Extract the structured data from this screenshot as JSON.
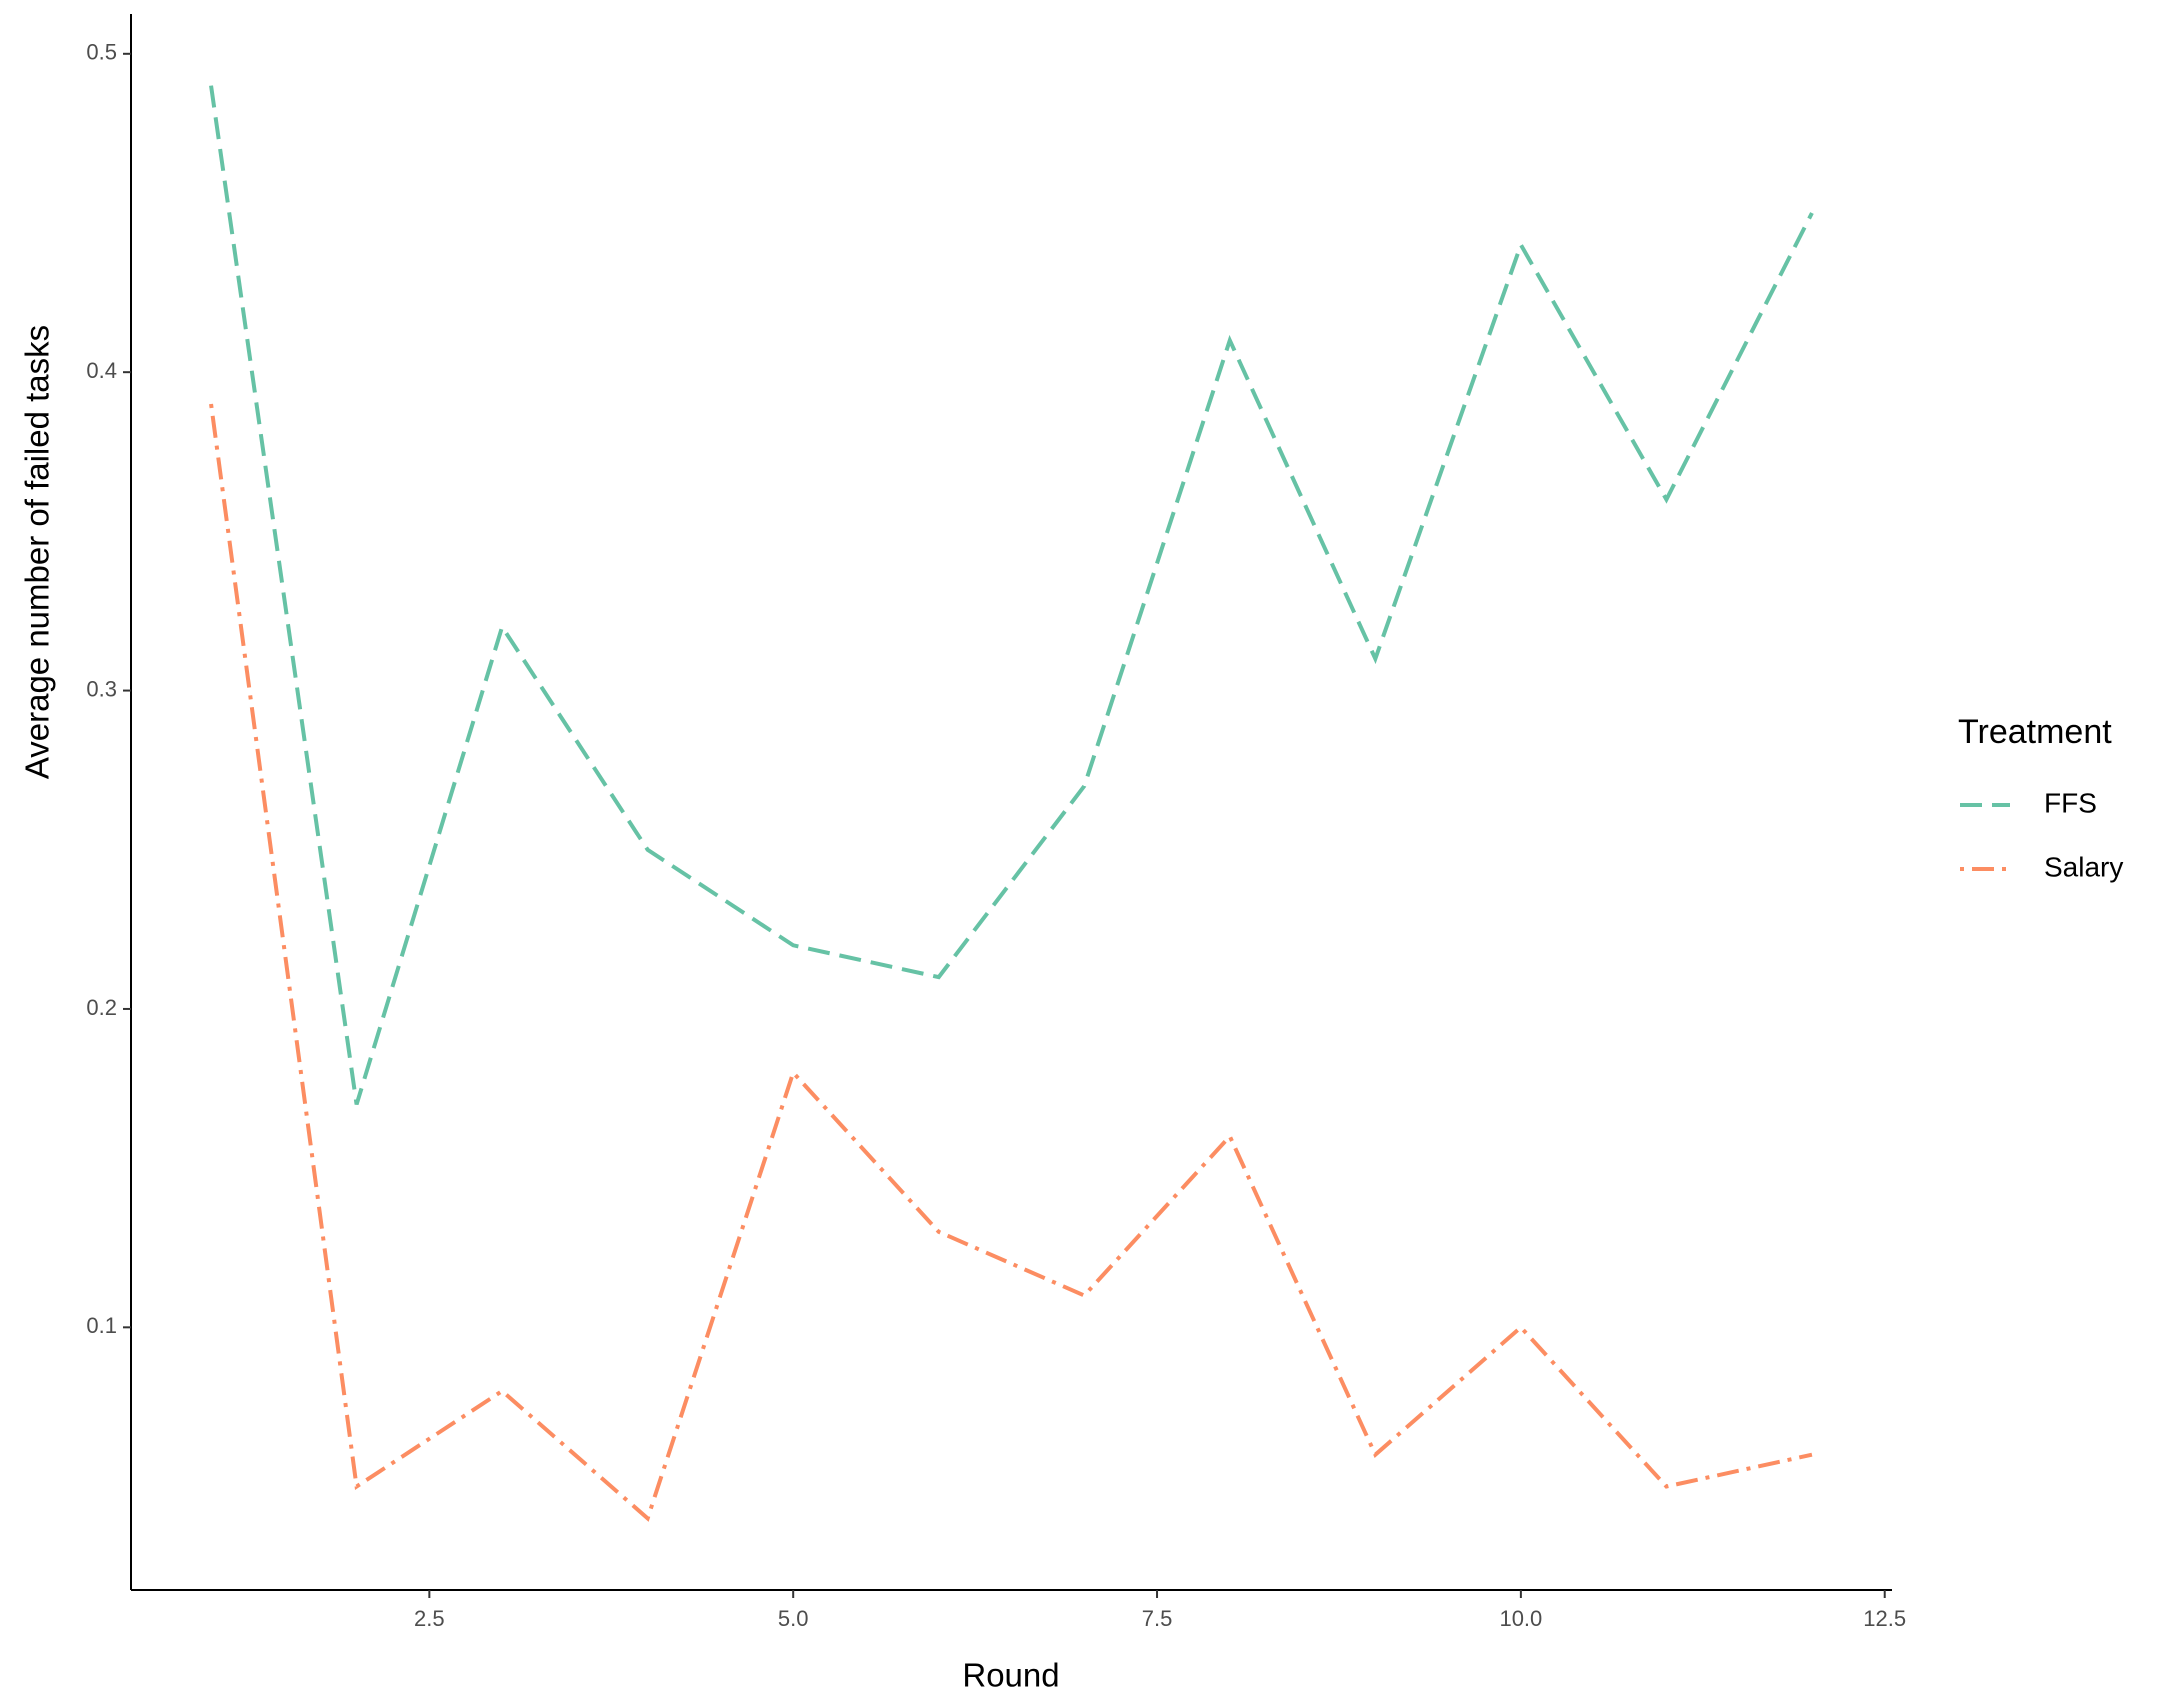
{
  "chart_data": {
    "type": "line",
    "x_label": "Round",
    "y_label": "Average number of failed tasks",
    "legend_title": "Treatment",
    "legend_position": "right",
    "x": [
      1,
      2,
      3,
      4,
      5,
      6,
      7,
      8,
      9,
      10,
      11,
      12
    ],
    "series": [
      {
        "name": "FFS",
        "color": "#66c2a5",
        "linetype": "dashed",
        "values": [
          0.49,
          0.17,
          0.32,
          0.25,
          0.22,
          0.21,
          0.27,
          0.41,
          0.31,
          0.44,
          0.36,
          0.45
        ]
      },
      {
        "name": "Salary",
        "color": "#fc8d62",
        "linetype": "dotdash",
        "values": [
          0.39,
          0.05,
          0.08,
          0.04,
          0.18,
          0.13,
          0.11,
          0.16,
          0.06,
          0.1,
          0.05,
          0.06
        ]
      }
    ],
    "xlim": [
      0.45,
      12.55
    ],
    "xticks": [
      2.5,
      {
        "value": 5,
        "label": "5.0"
      },
      7.5,
      {
        "value": 10,
        "label": "10.0"
      },
      12.5
    ],
    "ylim": [
      0.0175,
      0.5125
    ],
    "yticks": [
      0.1,
      0.2,
      0.3,
      0.4,
      0.5
    ],
    "grid": false
  }
}
